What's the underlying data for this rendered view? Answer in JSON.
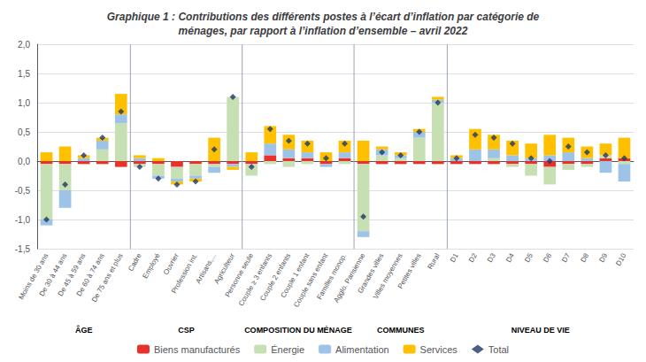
{
  "chart_data": {
    "type": "bar",
    "title": "Graphique 1 : Contributions des différents postes à l’écart d’inflation par catégorie de\nménages, par rapport à l’inflation d’ensemble – avril 2022",
    "categories": [
      "Moins de 30 ans",
      "De 30 à 44 ans",
      "De 45 à 59 ans",
      "De 60 à 74 ans",
      "De 75 ans et plus",
      "Cadre",
      "Employé",
      "Ouvrier",
      "Profession int.",
      "Artisans,...",
      "Agriculteur",
      "Personne seule",
      "Couple ≥ 3 enfants",
      "Couple 2 enfants",
      "Couple 1 enfant",
      "Couple sans enfant",
      "Familles monop.",
      "Agglo. Parisienne",
      "Grandes villes",
      "Villes moyennes",
      "Petites villes",
      "Rural",
      "D1",
      "D2",
      "D3",
      "D4",
      "D5",
      "D6",
      "D7",
      "D8",
      "D9",
      "D10"
    ],
    "series": [
      {
        "name": "Biens manufacturés",
        "color": "#e8312a",
        "values": [
          -0.05,
          -0.05,
          -0.05,
          -0.05,
          -0.1,
          -0.05,
          -0.05,
          -0.1,
          -0.05,
          -0.05,
          -0.05,
          -0.05,
          0.1,
          0.05,
          0.05,
          -0.05,
          0.05,
          -0.05,
          -0.05,
          -0.05,
          -0.05,
          -0.05,
          -0.05,
          -0.05,
          -0.05,
          -0.05,
          -0.05,
          -0.1,
          -0.05,
          -0.05,
          0.05,
          0.05
        ]
      },
      {
        "name": "Énergie",
        "color": "#c6e0b4",
        "values": [
          -0.95,
          -0.45,
          0.0,
          0.2,
          0.65,
          -0.05,
          -0.2,
          -0.2,
          -0.2,
          -0.05,
          1.1,
          -0.2,
          -0.05,
          -0.1,
          -0.05,
          0.0,
          -0.05,
          -1.15,
          0.1,
          0.05,
          0.4,
          1.0,
          0.0,
          0.0,
          0.05,
          -0.05,
          -0.2,
          -0.3,
          -0.1,
          -0.05,
          0.05,
          -0.05
        ]
      },
      {
        "name": "Alimentation",
        "color": "#9dc3e6",
        "values": [
          -0.1,
          -0.3,
          0.05,
          0.15,
          0.15,
          0.05,
          -0.05,
          -0.05,
          -0.05,
          -0.1,
          -0.05,
          0.0,
          0.2,
          0.15,
          0.1,
          -0.05,
          0.1,
          -0.1,
          0.1,
          0.05,
          0.1,
          0.05,
          0.05,
          0.2,
          0.15,
          0.1,
          0.05,
          0.1,
          0.15,
          0.05,
          -0.2,
          -0.3
        ]
      },
      {
        "name": "Services",
        "color": "#ffc000",
        "values": [
          0.15,
          0.25,
          0.05,
          0.05,
          0.35,
          0.05,
          0.05,
          -0.05,
          -0.05,
          0.4,
          -0.05,
          0.15,
          0.3,
          0.25,
          0.2,
          0.15,
          0.2,
          0.35,
          0.05,
          0.05,
          0.05,
          0.05,
          0.05,
          0.35,
          0.25,
          0.25,
          0.25,
          0.35,
          0.25,
          0.2,
          0.2,
          0.35
        ]
      },
      {
        "name": "Total",
        "type": "scatter",
        "marker": "diamond",
        "color": "#1f3864",
        "values": [
          -1.0,
          -0.4,
          0.1,
          0.4,
          0.85,
          -0.1,
          -0.3,
          -0.4,
          -0.35,
          0.2,
          1.1,
          -0.1,
          0.55,
          0.35,
          0.3,
          0.05,
          0.3,
          -0.95,
          0.15,
          0.1,
          0.5,
          1.0,
          0.05,
          0.45,
          0.4,
          0.3,
          0.05,
          0.0,
          0.25,
          0.15,
          0.1,
          0.05
        ]
      }
    ],
    "stacked": true,
    "groups": [
      {
        "name": "ÂGE",
        "first": "Moins de 30 ans",
        "last": "De 75 ans et plus"
      },
      {
        "name": "CSP",
        "first": "Cadre",
        "last": "Agriculteur"
      },
      {
        "name": "COMPOSITION DU MÉNAGE",
        "first": "Personne seule",
        "last": "Familles monop."
      },
      {
        "name": "COMMUNES",
        "first": "Agglo. Parisienne",
        "last": "Rural"
      },
      {
        "name": "NIVEAU DE VIE",
        "first": "D1",
        "last": "D10"
      }
    ],
    "ylim": [
      -1.5,
      2.0
    ],
    "yticks": [
      {
        "value": -1.5,
        "label": "-1,5"
      },
      {
        "value": -1.0,
        "label": "-1,0"
      },
      {
        "value": -0.5,
        "label": "-0,5"
      },
      {
        "value": 0.0,
        "label": "0,0"
      },
      {
        "value": 0.5,
        "label": "0,5"
      },
      {
        "value": 1.0,
        "label": "1,0"
      },
      {
        "value": 1.5,
        "label": "1,5"
      },
      {
        "value": 2.0,
        "label": "2,0"
      }
    ],
    "grid": true,
    "legend": "bottom"
  }
}
